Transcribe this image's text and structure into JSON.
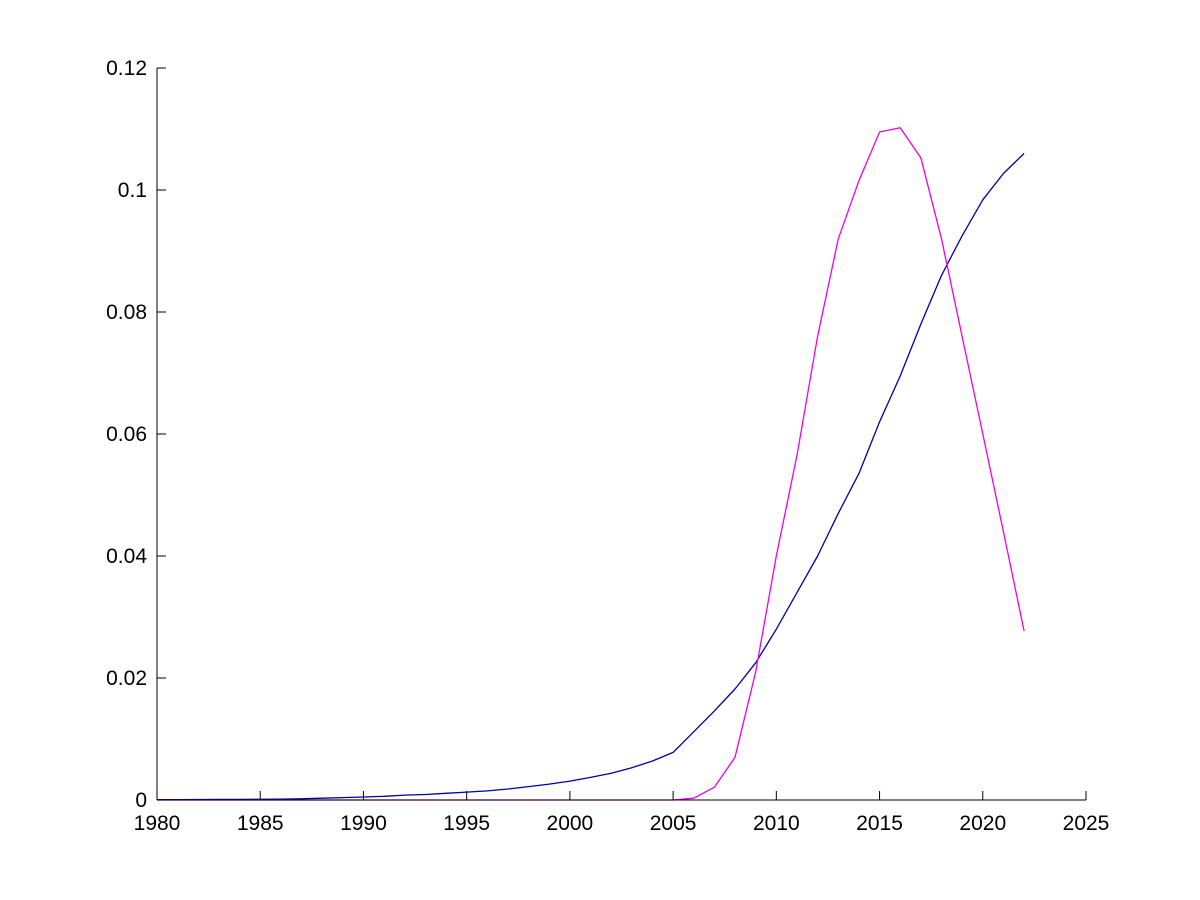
{
  "chart_data": {
    "type": "line",
    "title": "",
    "xlabel": "",
    "ylabel": "",
    "xlim": [
      1980,
      2025
    ],
    "ylim": [
      0,
      0.12
    ],
    "grid": false,
    "legend": "none",
    "background": "#ffffff",
    "axis_color": "#000000",
    "x_ticks": [
      1980,
      1985,
      1990,
      1995,
      2000,
      2005,
      2010,
      2015,
      2020,
      2025
    ],
    "x_tick_labels": [
      "1980",
      "1985",
      "1990",
      "1995",
      "2000",
      "2005",
      "2010",
      "2015",
      "2020",
      "2025"
    ],
    "y_ticks": [
      0,
      0.02,
      0.04,
      0.06,
      0.08,
      0.1,
      0.12
    ],
    "y_tick_labels": [
      "0",
      "0.02",
      "0.04",
      "0.06",
      "0.08",
      "0.1",
      "0.12"
    ],
    "x": [
      1980,
      1981,
      1982,
      1983,
      1984,
      1985,
      1986,
      1987,
      1988,
      1989,
      1990,
      1991,
      1992,
      1993,
      1994,
      1995,
      1996,
      1997,
      1998,
      1999,
      2000,
      2001,
      2002,
      2003,
      2004,
      2005,
      2006,
      2007,
      2008,
      2009,
      2010,
      2011,
      2012,
      2013,
      2014,
      2015,
      2016,
      2017,
      2018,
      2019,
      2020,
      2021,
      2022
    ],
    "series": [
      {
        "name": "dark-blue-s-curve",
        "color": "#00009E",
        "stroke_width": 1.3,
        "values": [
          5e-05,
          6e-05,
          8e-05,
          0.0001,
          0.0001,
          0.00012,
          0.00015,
          0.0002,
          0.0003,
          0.0004,
          0.0005,
          0.0006,
          0.0008,
          0.0009,
          0.0011,
          0.0013,
          0.0015,
          0.0018,
          0.0022,
          0.0026,
          0.0031,
          0.0037,
          0.0044,
          0.0053,
          0.0064,
          0.0078,
          0.0112,
          0.0146,
          0.0182,
          0.0225,
          0.028,
          0.034,
          0.04,
          0.047,
          0.0535,
          0.062,
          0.0695,
          0.078,
          0.086,
          0.0925,
          0.0984,
          0.1027,
          0.106
        ]
      },
      {
        "name": "magenta-bell-curve",
        "color": "#EE00EE",
        "stroke_width": 1.3,
        "values": [
          0,
          0,
          0,
          0,
          0,
          0,
          0,
          0,
          0,
          0,
          0,
          0,
          0,
          0,
          0,
          0,
          0,
          0,
          0,
          0,
          0,
          0,
          0,
          0,
          0,
          0,
          0.0003,
          0.0021,
          0.007,
          0.021,
          0.04,
          0.0565,
          0.076,
          0.092,
          0.1015,
          0.1095,
          0.1102,
          0.1053,
          0.092,
          0.076,
          0.06,
          0.044,
          0.0277
        ]
      }
    ]
  }
}
